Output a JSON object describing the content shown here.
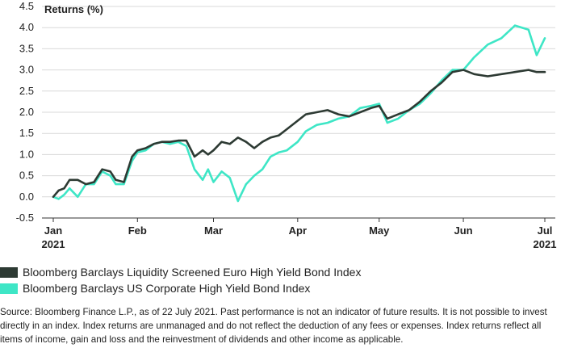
{
  "colors": {
    "series1": "#2d3a33",
    "series2": "#3ee6c6",
    "grid": "#d9d9d9",
    "axis": "#333333"
  },
  "chart_data": {
    "type": "line",
    "ylabel": "Returns (%)",
    "ylim": [
      -0.5,
      4.5
    ],
    "yticks": [
      "4.5",
      "4.0",
      "3.5",
      "3.0",
      "2.5",
      "2.0",
      "1.5",
      "1.0",
      "0.5",
      "0.0",
      "-0.5"
    ],
    "ytick_values": [
      4.5,
      4.0,
      3.5,
      3.0,
      2.5,
      2.0,
      1.5,
      1.0,
      0.5,
      0.0,
      -0.5
    ],
    "x_range": [
      "2021-01-01",
      "2021-07-01"
    ],
    "xticks": [
      {
        "date": "2021-01-01",
        "label": "Jan",
        "sub": "2021"
      },
      {
        "date": "2021-02-01",
        "label": "Feb",
        "sub": ""
      },
      {
        "date": "2021-03-01",
        "label": "Mar",
        "sub": ""
      },
      {
        "date": "2021-04-01",
        "label": "Apr",
        "sub": ""
      },
      {
        "date": "2021-05-01",
        "label": "May",
        "sub": ""
      },
      {
        "date": "2021-06-01",
        "label": "Jun",
        "sub": ""
      },
      {
        "date": "2021-07-01",
        "label": "Jul",
        "sub": "2021"
      }
    ],
    "grid": true,
    "series": [
      {
        "name": "Bloomberg Barclays Liquidity Screened Euro High Yield Bond Index",
        "x": [
          "2021-01-01",
          "2021-01-03",
          "2021-01-05",
          "2021-01-07",
          "2021-01-10",
          "2021-01-13",
          "2021-01-16",
          "2021-01-19",
          "2021-01-22",
          "2021-01-24",
          "2021-01-27",
          "2021-01-30",
          "2021-02-01",
          "2021-02-04",
          "2021-02-07",
          "2021-02-10",
          "2021-02-13",
          "2021-02-16",
          "2021-02-19",
          "2021-02-22",
          "2021-02-25",
          "2021-02-27",
          "2021-03-01",
          "2021-03-04",
          "2021-03-07",
          "2021-03-10",
          "2021-03-13",
          "2021-03-16",
          "2021-03-19",
          "2021-03-22",
          "2021-03-25",
          "2021-03-28",
          "2021-04-01",
          "2021-04-04",
          "2021-04-08",
          "2021-04-12",
          "2021-04-16",
          "2021-04-20",
          "2021-04-24",
          "2021-04-28",
          "2021-05-01",
          "2021-05-04",
          "2021-05-08",
          "2021-05-12",
          "2021-05-16",
          "2021-05-20",
          "2021-05-24",
          "2021-05-28",
          "2021-06-01",
          "2021-06-05",
          "2021-06-10",
          "2021-06-15",
          "2021-06-20",
          "2021-06-25",
          "2021-06-28",
          "2021-07-01"
        ],
        "values": [
          0.0,
          0.15,
          0.2,
          0.4,
          0.4,
          0.3,
          0.35,
          0.65,
          0.6,
          0.4,
          0.35,
          0.95,
          1.1,
          1.15,
          1.25,
          1.3,
          1.3,
          1.33,
          1.33,
          0.95,
          1.1,
          1.0,
          1.1,
          1.3,
          1.25,
          1.4,
          1.3,
          1.15,
          1.3,
          1.4,
          1.45,
          1.6,
          1.8,
          1.95,
          2.0,
          2.05,
          1.95,
          1.9,
          2.0,
          2.1,
          2.15,
          1.85,
          1.95,
          2.05,
          2.25,
          2.5,
          2.7,
          2.95,
          3.0,
          2.9,
          2.85,
          2.9,
          2.95,
          3.0,
          2.95,
          2.95
        ]
      },
      {
        "name": "Bloomberg Barclays US Corporate High Yield Bond Index",
        "x": [
          "2021-01-01",
          "2021-01-03",
          "2021-01-05",
          "2021-01-07",
          "2021-01-10",
          "2021-01-13",
          "2021-01-16",
          "2021-01-19",
          "2021-01-22",
          "2021-01-24",
          "2021-01-27",
          "2021-01-30",
          "2021-02-01",
          "2021-02-04",
          "2021-02-07",
          "2021-02-10",
          "2021-02-13",
          "2021-02-16",
          "2021-02-19",
          "2021-02-22",
          "2021-02-25",
          "2021-02-27",
          "2021-03-01",
          "2021-03-04",
          "2021-03-07",
          "2021-03-10",
          "2021-03-13",
          "2021-03-16",
          "2021-03-19",
          "2021-03-22",
          "2021-03-25",
          "2021-03-28",
          "2021-04-01",
          "2021-04-04",
          "2021-04-08",
          "2021-04-12",
          "2021-04-16",
          "2021-04-20",
          "2021-04-24",
          "2021-04-28",
          "2021-05-01",
          "2021-05-04",
          "2021-05-08",
          "2021-05-12",
          "2021-05-16",
          "2021-05-20",
          "2021-05-24",
          "2021-05-28",
          "2021-06-01",
          "2021-06-05",
          "2021-06-10",
          "2021-06-15",
          "2021-06-20",
          "2021-06-25",
          "2021-06-28",
          "2021-07-01"
        ],
        "values": [
          0.0,
          -0.05,
          0.05,
          0.2,
          0.0,
          0.3,
          0.3,
          0.6,
          0.5,
          0.3,
          0.3,
          0.85,
          1.05,
          1.1,
          1.25,
          1.3,
          1.25,
          1.3,
          1.2,
          0.65,
          0.4,
          0.65,
          0.35,
          0.6,
          0.45,
          -0.1,
          0.3,
          0.5,
          0.65,
          0.95,
          1.05,
          1.1,
          1.3,
          1.55,
          1.7,
          1.75,
          1.85,
          1.9,
          2.1,
          2.15,
          2.2,
          1.75,
          1.85,
          2.05,
          2.2,
          2.45,
          2.75,
          3.0,
          3.0,
          3.3,
          3.6,
          3.75,
          4.05,
          3.95,
          3.35,
          3.75
        ]
      }
    ]
  },
  "source_text": "Source: Bloomberg Finance L.P., as of 22 July 2021. Past performance is not an indicator of future results. It is not possible to invest directly in an index. Index returns are unmanaged and do not reflect the deduction of any fees or expenses. Index returns reflect all items of income, gain and loss and the reinvestment of dividends and other income as applicable."
}
